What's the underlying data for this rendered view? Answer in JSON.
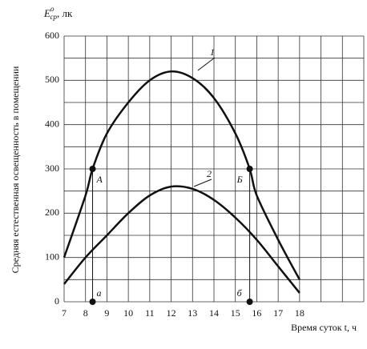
{
  "chart_data": {
    "type": "line",
    "y_symbol": "E",
    "y_symbol_sup": "о",
    "y_symbol_sub": "ср",
    "y_unit": ", лк",
    "ylabel": "Средняя естественная освещенность в помещении",
    "xlabel": "Время суток t, ч",
    "xlim": [
      7,
      21
    ],
    "ylim": [
      0,
      600
    ],
    "xticks": [
      7,
      8,
      9,
      10,
      11,
      12,
      13,
      14,
      15,
      16,
      17,
      18
    ],
    "xgrid": [
      7,
      8,
      9,
      10,
      11,
      12,
      13,
      14,
      15,
      16,
      17,
      18,
      19,
      20,
      21
    ],
    "yticks": [
      0,
      100,
      200,
      300,
      400,
      500,
      600
    ],
    "ygrid": [
      0,
      50,
      100,
      150,
      200,
      250,
      300,
      350,
      400,
      450,
      500,
      550,
      600
    ],
    "series": [
      {
        "name": "1",
        "color": "#111111",
        "x": [
          7,
          8,
          8.33,
          9,
          10,
          11,
          12,
          13,
          14,
          15,
          15.67,
          16,
          17,
          18
        ],
        "values": [
          100,
          240,
          300,
          380,
          450,
          500,
          520,
          505,
          460,
          380,
          300,
          240,
          140,
          50
        ]
      },
      {
        "name": "2",
        "color": "#111111",
        "x": [
          7,
          8,
          9,
          10,
          11,
          12,
          13,
          14,
          15,
          16,
          17,
          18
        ],
        "values": [
          40,
          100,
          150,
          200,
          240,
          260,
          255,
          230,
          190,
          140,
          80,
          20
        ]
      }
    ],
    "points": [
      {
        "label": "A",
        "x": 8.33,
        "y": 300
      },
      {
        "label": "Б",
        "x": 15.67,
        "y": 300
      },
      {
        "label": "a",
        "x": 8.33,
        "y": 0
      },
      {
        "label": "б",
        "x": 15.67,
        "y": 0
      }
    ]
  }
}
